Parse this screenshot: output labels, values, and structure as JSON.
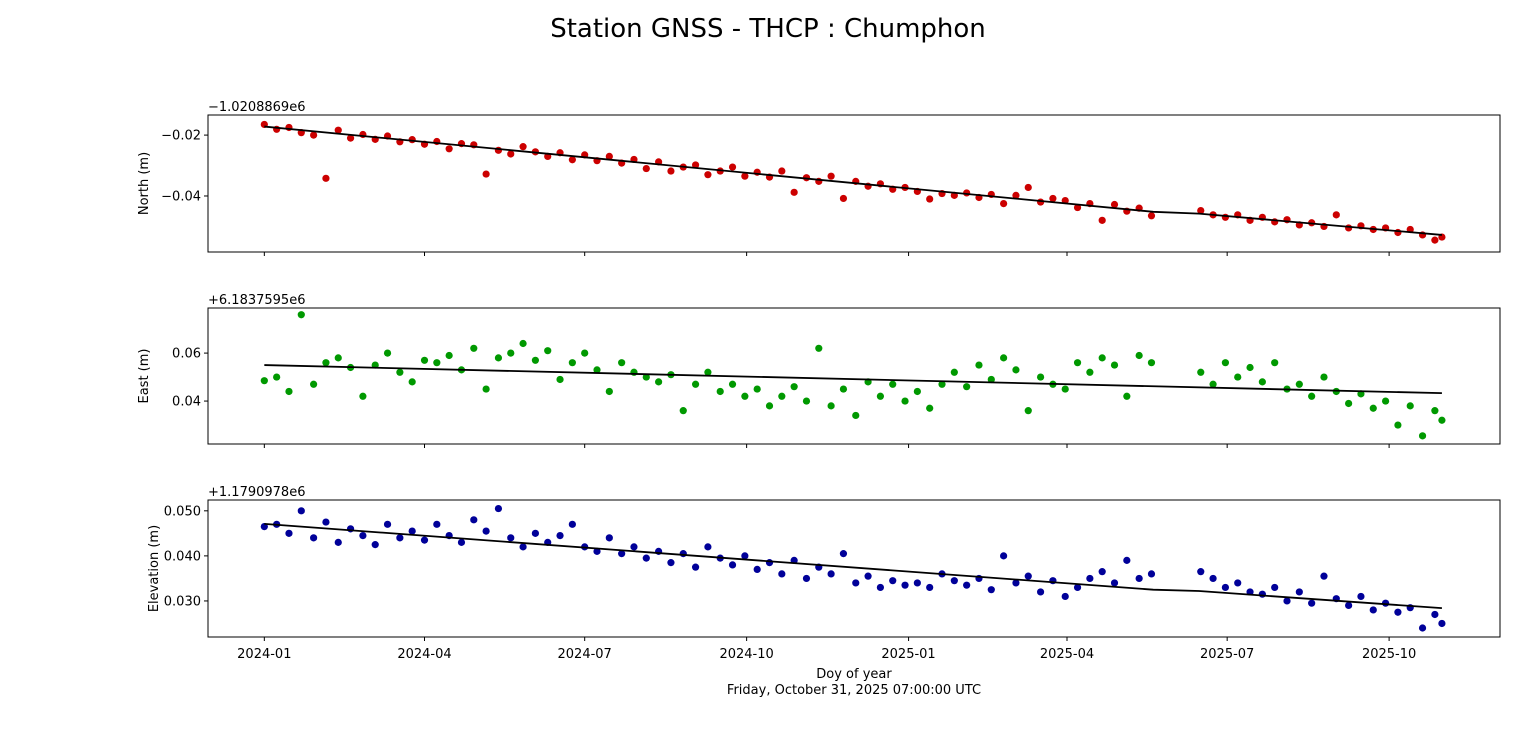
{
  "title": "Station GNSS - THCP : Chumphon",
  "chart_data": [
    {
      "type": "scatter",
      "ylabel": "North (m)",
      "offset_label": "−1.0208869e6",
      "color": "#cc0000",
      "ylim": [
        -0.0584,
        -0.0134
      ],
      "yticks": [
        -0.02,
        -0.04
      ],
      "ytick_labels": [
        "−0.02",
        "−0.04"
      ],
      "x": [
        "2024-01-01",
        "2024-01-08",
        "2024-01-15",
        "2024-01-22",
        "2024-01-29",
        "2024-02-05",
        "2024-02-12",
        "2024-02-19",
        "2024-02-26",
        "2024-03-04",
        "2024-03-11",
        "2024-03-18",
        "2024-03-25",
        "2024-04-01",
        "2024-04-08",
        "2024-04-15",
        "2024-04-22",
        "2024-04-29",
        "2024-05-06",
        "2024-05-13",
        "2024-05-20",
        "2024-05-27",
        "2024-06-03",
        "2024-06-10",
        "2024-06-17",
        "2024-06-24",
        "2024-07-01",
        "2024-07-08",
        "2024-07-15",
        "2024-07-22",
        "2024-07-29",
        "2024-08-05",
        "2024-08-12",
        "2024-08-19",
        "2024-08-26",
        "2024-09-02",
        "2024-09-09",
        "2024-09-16",
        "2024-09-23",
        "2024-09-30",
        "2024-10-07",
        "2024-10-14",
        "2024-10-21",
        "2024-10-28",
        "2024-11-04",
        "2024-11-11",
        "2024-11-18",
        "2024-11-25",
        "2024-12-02",
        "2024-12-09",
        "2024-12-16",
        "2024-12-23",
        "2024-12-30",
        "2025-01-06",
        "2025-01-13",
        "2025-01-20",
        "2025-01-27",
        "2025-02-03",
        "2025-02-10",
        "2025-02-17",
        "2025-02-24",
        "2025-03-03",
        "2025-03-10",
        "2025-03-17",
        "2025-03-24",
        "2025-03-31",
        "2025-04-07",
        "2025-04-14",
        "2025-04-21",
        "2025-04-28",
        "2025-05-05",
        "2025-05-12",
        "2025-05-19",
        "2025-06-16",
        "2025-06-23",
        "2025-06-30",
        "2025-07-07",
        "2025-07-14",
        "2025-07-21",
        "2025-07-28",
        "2025-08-04",
        "2025-08-11",
        "2025-08-18",
        "2025-08-25",
        "2025-09-01",
        "2025-09-08",
        "2025-09-15",
        "2025-09-22",
        "2025-09-29",
        "2025-10-06",
        "2025-10-13",
        "2025-10-20",
        "2025-10-27",
        "2025-10-31"
      ],
      "y": [
        -0.0165,
        -0.0181,
        -0.0175,
        -0.0192,
        -0.02,
        -0.0342,
        -0.0184,
        -0.021,
        -0.0198,
        -0.0214,
        -0.0203,
        -0.0222,
        -0.0215,
        -0.023,
        -0.0221,
        -0.0245,
        -0.0228,
        -0.0232,
        -0.0328,
        -0.025,
        -0.0262,
        -0.0238,
        -0.0255,
        -0.027,
        -0.0258,
        -0.0281,
        -0.0265,
        -0.0284,
        -0.027,
        -0.0292,
        -0.028,
        -0.031,
        -0.0288,
        -0.0318,
        -0.0305,
        -0.0298,
        -0.033,
        -0.0318,
        -0.0305,
        -0.0335,
        -0.0322,
        -0.0338,
        -0.0318,
        -0.0388,
        -0.034,
        -0.0352,
        -0.0335,
        -0.0408,
        -0.0352,
        -0.0368,
        -0.036,
        -0.0378,
        -0.0372,
        -0.0385,
        -0.041,
        -0.0392,
        -0.0398,
        -0.039,
        -0.0405,
        -0.0395,
        -0.0425,
        -0.0398,
        -0.0372,
        -0.042,
        -0.0408,
        -0.0415,
        -0.0438,
        -0.0425,
        -0.048,
        -0.0428,
        -0.045,
        -0.044,
        -0.0465,
        -0.0448,
        -0.0462,
        -0.047,
        -0.0462,
        -0.048,
        -0.047,
        -0.0485,
        -0.0478,
        -0.0495,
        -0.0488,
        -0.05,
        -0.0462,
        -0.0505,
        -0.0498,
        -0.051,
        -0.0505,
        -0.052,
        -0.051,
        -0.0528,
        -0.0545,
        -0.0535
      ],
      "trend": {
        "x": [
          "2024-01-01",
          "2025-05-20",
          "2025-06-15",
          "2025-10-31"
        ],
        "y": [
          -0.0172,
          -0.0452,
          -0.0458,
          -0.0528
        ],
        "color": "#000000"
      }
    },
    {
      "type": "scatter",
      "ylabel": "East (m)",
      "offset_label": "+6.1837595e6",
      "color": "#009900",
      "ylim": [
        0.0221,
        0.0788
      ],
      "yticks": [
        0.04,
        0.06
      ],
      "ytick_labels": [
        "0.04",
        "0.06"
      ],
      "x_ref": 0,
      "y": [
        0.0485,
        0.05,
        0.044,
        0.076,
        0.047,
        0.056,
        0.058,
        0.054,
        0.042,
        0.055,
        0.06,
        0.052,
        0.048,
        0.057,
        0.056,
        0.059,
        0.053,
        0.062,
        0.045,
        0.058,
        0.06,
        0.064,
        0.057,
        0.061,
        0.049,
        0.056,
        0.06,
        0.053,
        0.044,
        0.056,
        0.052,
        0.05,
        0.048,
        0.051,
        0.036,
        0.047,
        0.052,
        0.044,
        0.047,
        0.042,
        0.045,
        0.038,
        0.042,
        0.046,
        0.04,
        0.062,
        0.038,
        0.045,
        0.034,
        0.048,
        0.042,
        0.047,
        0.04,
        0.044,
        0.037,
        0.047,
        0.052,
        0.046,
        0.055,
        0.049,
        0.058,
        0.053,
        0.036,
        0.05,
        0.047,
        0.045,
        0.056,
        0.052,
        0.058,
        0.055,
        0.042,
        0.059,
        0.056,
        0.052,
        0.047,
        0.056,
        0.05,
        0.054,
        0.048,
        0.056,
        0.045,
        0.047,
        0.042,
        0.05,
        0.044,
        0.039,
        0.043,
        0.037,
        0.04,
        0.03,
        0.038,
        0.0255,
        0.036,
        0.032
      ],
      "trend": {
        "x": [
          "2024-01-01",
          "2025-10-31"
        ],
        "y": [
          0.055,
          0.0433
        ],
        "color": "#000000"
      }
    },
    {
      "type": "scatter",
      "ylabel": "Elevation (m)",
      "offset_label": "+1.1790978e6",
      "color": "#000099",
      "ylim": [
        0.022,
        0.0524
      ],
      "yticks": [
        0.03,
        0.04,
        0.05
      ],
      "ytick_labels": [
        "0.030",
        "0.040",
        "0.050"
      ],
      "x_ref": 0,
      "y": [
        0.0465,
        0.047,
        0.045,
        0.05,
        0.044,
        0.0475,
        0.043,
        0.046,
        0.0445,
        0.0425,
        0.047,
        0.044,
        0.0455,
        0.0435,
        0.047,
        0.0445,
        0.043,
        0.048,
        0.0455,
        0.0505,
        0.044,
        0.042,
        0.045,
        0.043,
        0.0445,
        0.047,
        0.042,
        0.041,
        0.044,
        0.0405,
        0.042,
        0.0395,
        0.041,
        0.0385,
        0.0405,
        0.0375,
        0.042,
        0.0395,
        0.038,
        0.04,
        0.037,
        0.0385,
        0.036,
        0.039,
        0.035,
        0.0375,
        0.036,
        0.0405,
        0.034,
        0.0355,
        0.033,
        0.0345,
        0.0335,
        0.034,
        0.033,
        0.036,
        0.0345,
        0.0335,
        0.035,
        0.0325,
        0.04,
        0.034,
        0.0355,
        0.032,
        0.0345,
        0.031,
        0.033,
        0.035,
        0.0365,
        0.034,
        0.039,
        0.035,
        0.036,
        0.0365,
        0.035,
        0.033,
        0.034,
        0.032,
        0.0315,
        0.033,
        0.03,
        0.032,
        0.0295,
        0.0355,
        0.0305,
        0.029,
        0.031,
        0.028,
        0.0295,
        0.0275,
        0.0285,
        0.024,
        0.027,
        0.025
      ],
      "trend": {
        "x": [
          "2024-01-01",
          "2025-05-20",
          "2025-06-15",
          "2025-10-31"
        ],
        "y": [
          0.0471,
          0.0325,
          0.0322,
          0.0284
        ],
        "color": "#000000"
      }
    }
  ],
  "x_axis": {
    "xlim": [
      "2023-11-30",
      "2025-12-03"
    ],
    "ticks": [
      "2024-01-01",
      "2024-04-01",
      "2024-07-01",
      "2024-10-01",
      "2025-01-01",
      "2025-04-01",
      "2025-07-01",
      "2025-10-01"
    ],
    "tick_labels": [
      "2024-01",
      "2024-04",
      "2024-07",
      "2024-10",
      "2025-01",
      "2025-04",
      "2025-07",
      "2025-10"
    ],
    "xlabel": "Doy of year",
    "subtitle": "Friday, October 31, 2025 07:00:00 UTC"
  }
}
